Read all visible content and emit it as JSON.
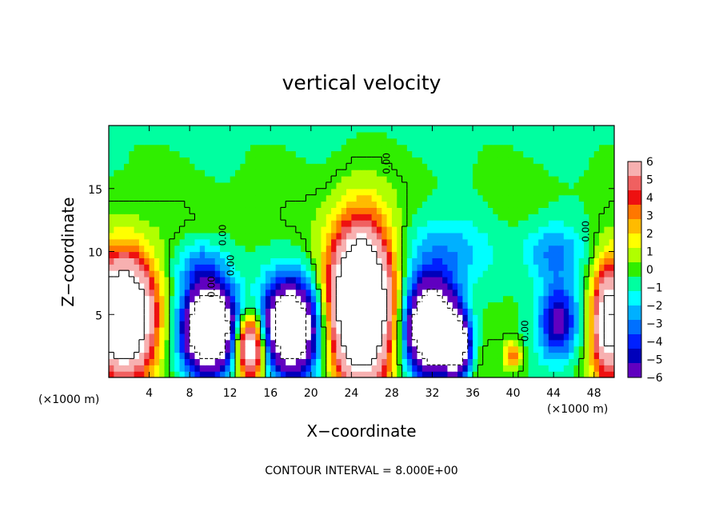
{
  "chart_data": {
    "type": "heatmap",
    "title": "vertical velocity",
    "xlabel": "X−coordinate",
    "ylabel": "Z−coordinate",
    "x_unit": "(×1000 m)",
    "x_unit_right": "(×1000 m)",
    "xlim": [
      0,
      50
    ],
    "ylim": [
      0,
      20
    ],
    "x_ticks": [
      4,
      8,
      12,
      16,
      20,
      24,
      28,
      32,
      36,
      40,
      44,
      48
    ],
    "y_ticks": [
      5,
      10,
      15
    ],
    "contour_interval_text": "CONTOUR INTERVAL = 8.000E+00",
    "contour_labels": [
      "0.00",
      "0.00",
      "0.00",
      "0.00",
      "0.00",
      "0.00"
    ],
    "colorbar": {
      "min": -6,
      "max": 6,
      "labels": [
        "6",
        "5",
        "4",
        "3",
        "2",
        "1",
        "0",
        "−1",
        "−2",
        "−3",
        "−4",
        "−5",
        "−6"
      ],
      "colors": [
        "#f7b0b0",
        "#f06060",
        "#ee1010",
        "#ff7700",
        "#ffbb00",
        "#ffff00",
        "#b0ff00",
        "#30ee00",
        "#00ffa0",
        "#00ffff",
        "#00b0ff",
        "#0070ff",
        "#0020ff",
        "#0000bb",
        "#6000c0"
      ]
    },
    "features": [
      {
        "name": "updraft",
        "x": 1.5,
        "z": 5,
        "rx": 3.0,
        "rz": 4.5,
        "w": 14
      },
      {
        "name": "updraft",
        "x": 14,
        "z": 2.5,
        "rx": 1.4,
        "rz": 2.5,
        "w": 10
      },
      {
        "name": "updraft",
        "x": 25,
        "z": 6,
        "rx": 3.0,
        "rz": 6.0,
        "w": 16
      },
      {
        "name": "updraft",
        "x": 49.5,
        "z": 4.5,
        "rx": 1.6,
        "rz": 4.5,
        "w": 10
      },
      {
        "name": "updraft",
        "x": 40,
        "z": 1.8,
        "rx": 0.8,
        "rz": 1.0,
        "w": 4
      },
      {
        "name": "downdraft",
        "x": 10,
        "z": 4,
        "rx": 2.6,
        "rz": 3.5,
        "w": -14
      },
      {
        "name": "downdraft",
        "x": 18,
        "z": 4,
        "rx": 2.8,
        "rz": 3.8,
        "w": -12
      },
      {
        "name": "downdraft",
        "x": 32,
        "z": 4,
        "rx": 2.6,
        "rz": 3.6,
        "w": -14
      },
      {
        "name": "downdraft",
        "x": 34.5,
        "z": 2.5,
        "rx": 1.2,
        "rz": 2.2,
        "w": -10
      },
      {
        "name": "downdraft",
        "x": 44.5,
        "z": 4.5,
        "rx": 2.0,
        "rz": 3.0,
        "w": -6
      },
      {
        "name": "downdraft",
        "x": 44,
        "z": 10,
        "rx": 3.0,
        "rz": 2.5,
        "w": -3
      },
      {
        "name": "downdraft",
        "x": 33,
        "z": 10,
        "rx": 5.0,
        "rz": 3.0,
        "w": -2.5
      },
      {
        "name": "downdraft",
        "x": 9,
        "z": 9,
        "rx": 2.5,
        "rz": 2.0,
        "w": -2.5
      }
    ]
  }
}
